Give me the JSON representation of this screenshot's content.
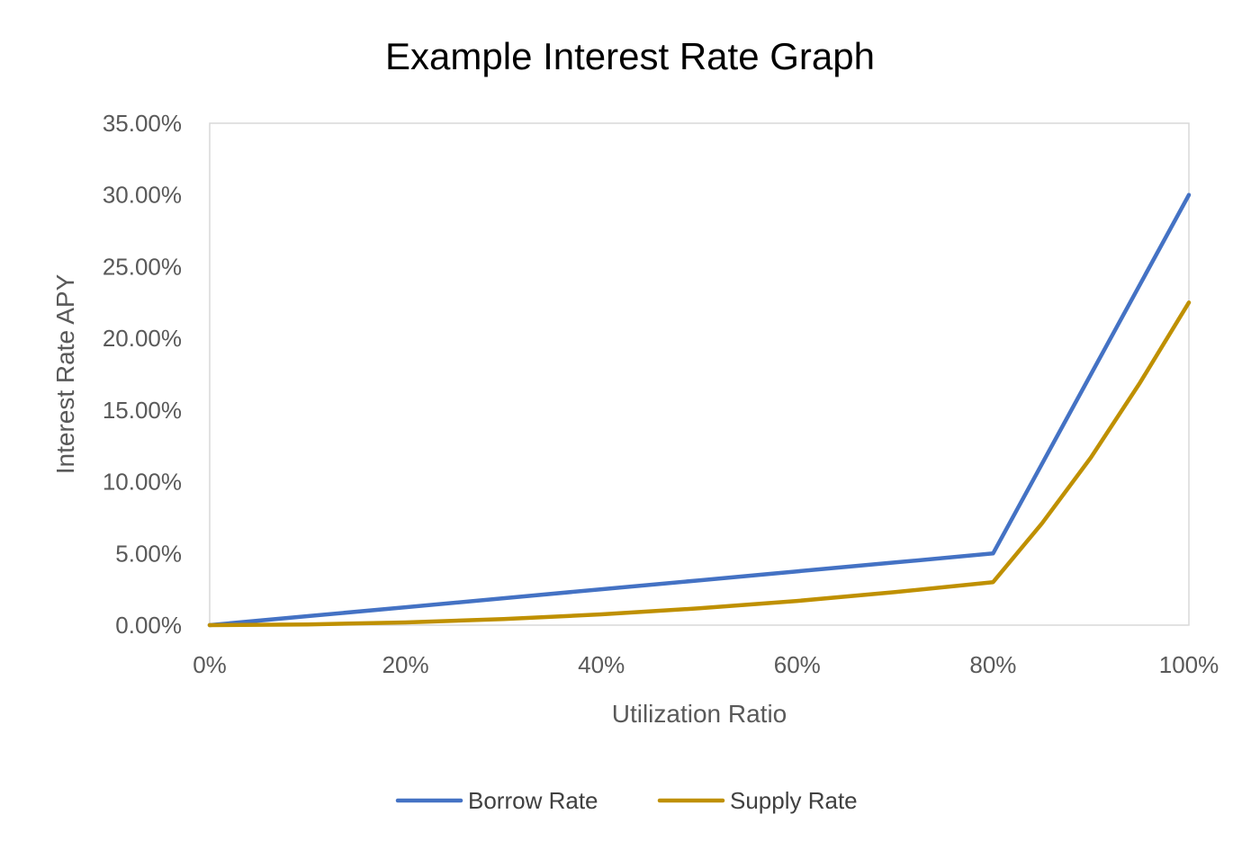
{
  "chart_data": {
    "type": "line",
    "title": "Example Interest Rate Graph",
    "xlabel": "Utilization Ratio",
    "ylabel": "Interest Rate APY",
    "xlim": [
      0,
      100
    ],
    "ylim": [
      0,
      35
    ],
    "x_ticks": [
      0,
      20,
      40,
      60,
      80,
      100
    ],
    "x_tick_labels": [
      "0%",
      "20%",
      "40%",
      "60%",
      "80%",
      "100%"
    ],
    "y_ticks": [
      0,
      5,
      10,
      15,
      20,
      25,
      30,
      35
    ],
    "y_tick_labels": [
      "0.00%",
      "5.00%",
      "10.00%",
      "15.00%",
      "20.00%",
      "25.00%",
      "30.00%",
      "35.00%"
    ],
    "grid": false,
    "legend_position": "bottom",
    "series": [
      {
        "name": "Borrow Rate",
        "color": "#4472C4",
        "x": [
          0,
          10,
          20,
          30,
          40,
          50,
          60,
          70,
          80,
          90,
          100
        ],
        "y": [
          0,
          0.625,
          1.25,
          1.875,
          2.5,
          3.125,
          3.75,
          4.375,
          5.0,
          17.5,
          30.0
        ]
      },
      {
        "name": "Supply Rate",
        "color": "#BF9000",
        "x": [
          0,
          10,
          20,
          30,
          40,
          50,
          60,
          70,
          80,
          85,
          90,
          95,
          100
        ],
        "y": [
          0,
          0.05,
          0.19,
          0.42,
          0.75,
          1.17,
          1.69,
          2.3,
          3.0,
          7.1,
          11.7,
          16.9,
          22.5
        ]
      }
    ]
  }
}
